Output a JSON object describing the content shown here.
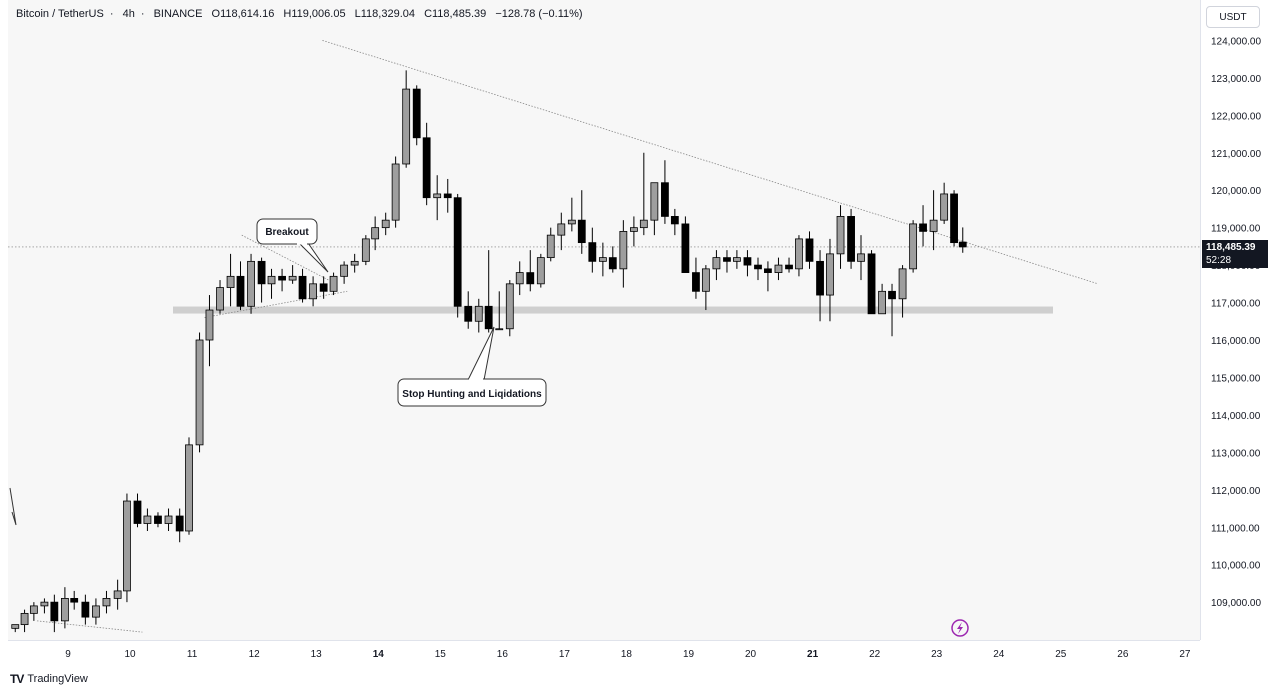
{
  "header": {
    "symbol": "Bitcoin / TetherUS",
    "interval": "4h",
    "exchange": "BINANCE",
    "open": "O118,614.16",
    "high": "H119,006.05",
    "low": "L118,329.04",
    "close": "C118,485.39",
    "change": "−128.78 (−0.11%)"
  },
  "price_scale": {
    "currency": "USDT",
    "last_price": "118,485.39",
    "countdown": "52:28"
  },
  "annotations": {
    "breakout": "Breakout",
    "stop_hunting": "Stop Hunting and Liqidations"
  },
  "footer": {
    "brand": "TradingView",
    "logo": "TV"
  },
  "colors": {
    "bull": "#9e9e9e",
    "bear": "#000000",
    "wick": "#000000",
    "support_band": "#cfcfcf",
    "trendline": "#888888",
    "lightning": "#9c27b0"
  },
  "chart_data": {
    "type": "candlestick",
    "title": "Bitcoin / TetherUS · 4h · BINANCE",
    "y_ticks": [
      "109,000.00",
      "110,000.00",
      "111,000.00",
      "112,000.00",
      "113,000.00",
      "114,000.00",
      "115,000.00",
      "116,000.00",
      "117,000.00",
      "118,000.00",
      "119,000.00",
      "120,000.00",
      "121,000.00",
      "122,000.00",
      "123,000.00",
      "124,000.00"
    ],
    "y_tick_values": [
      109000,
      110000,
      111000,
      112000,
      113000,
      114000,
      115000,
      116000,
      117000,
      118000,
      119000,
      120000,
      121000,
      122000,
      123000,
      124000
    ],
    "x_ticks": [
      "9",
      "10",
      "11",
      "12",
      "13",
      "14",
      "15",
      "16",
      "17",
      "18",
      "19",
      "20",
      "21",
      "22",
      "23",
      "24",
      "25",
      "26",
      "27"
    ],
    "x_tick_values": [
      9,
      10,
      11,
      12,
      13,
      14,
      15,
      16,
      17,
      18,
      19,
      20,
      21,
      22,
      23,
      24,
      25,
      26,
      27
    ],
    "ylim": [
      108500,
      124800
    ],
    "xlim": [
      8.05,
      27.3
    ],
    "last_price": 118485.39,
    "support_level": 116800,
    "candles": [
      {
        "t": 8.15,
        "o": 108300,
        "h": 108400,
        "l": 108200,
        "c": 108400
      },
      {
        "t": 8.3,
        "o": 108400,
        "h": 108800,
        "l": 108200,
        "c": 108700
      },
      {
        "t": 8.45,
        "o": 108700,
        "h": 109000,
        "l": 108500,
        "c": 108900
      },
      {
        "t": 8.62,
        "o": 108900,
        "h": 109100,
        "l": 108700,
        "c": 109000
      },
      {
        "t": 8.78,
        "o": 109000,
        "h": 109200,
        "l": 108200,
        "c": 108500
      },
      {
        "t": 8.95,
        "o": 108500,
        "h": 109400,
        "l": 108300,
        "c": 109100
      },
      {
        "t": 9.1,
        "o": 109100,
        "h": 109300,
        "l": 108800,
        "c": 109000
      },
      {
        "t": 9.28,
        "o": 109000,
        "h": 109200,
        "l": 108400,
        "c": 108600
      },
      {
        "t": 9.45,
        "o": 108600,
        "h": 109100,
        "l": 108400,
        "c": 108900
      },
      {
        "t": 9.62,
        "o": 108900,
        "h": 109300,
        "l": 108700,
        "c": 109100
      },
      {
        "t": 9.8,
        "o": 109100,
        "h": 109600,
        "l": 108800,
        "c": 109300
      },
      {
        "t": 9.95,
        "o": 109300,
        "h": 111900,
        "l": 109000,
        "c": 111700
      },
      {
        "t": 10.12,
        "o": 111700,
        "h": 111900,
        "l": 111000,
        "c": 111100
      },
      {
        "t": 10.28,
        "o": 111100,
        "h": 111500,
        "l": 110900,
        "c": 111300
      },
      {
        "t": 10.45,
        "o": 111300,
        "h": 111400,
        "l": 111000,
        "c": 111100
      },
      {
        "t": 10.62,
        "o": 111100,
        "h": 111500,
        "l": 110900,
        "c": 111300
      },
      {
        "t": 10.8,
        "o": 111300,
        "h": 111500,
        "l": 110600,
        "c": 110900
      },
      {
        "t": 10.95,
        "o": 110900,
        "h": 113400,
        "l": 110800,
        "c": 113200
      },
      {
        "t": 11.12,
        "o": 113200,
        "h": 116200,
        "l": 113000,
        "c": 116000
      },
      {
        "t": 11.28,
        "o": 116000,
        "h": 117200,
        "l": 115300,
        "c": 116800
      },
      {
        "t": 11.45,
        "o": 116800,
        "h": 117600,
        "l": 116700,
        "c": 117400
      },
      {
        "t": 11.62,
        "o": 117400,
        "h": 118300,
        "l": 116900,
        "c": 117700
      },
      {
        "t": 11.78,
        "o": 117700,
        "h": 118100,
        "l": 116800,
        "c": 116900
      },
      {
        "t": 11.95,
        "o": 116900,
        "h": 118300,
        "l": 116700,
        "c": 118100
      },
      {
        "t": 12.12,
        "o": 118100,
        "h": 118200,
        "l": 117000,
        "c": 117500
      },
      {
        "t": 12.28,
        "o": 117500,
        "h": 117900,
        "l": 117100,
        "c": 117700
      },
      {
        "t": 12.45,
        "o": 117700,
        "h": 117900,
        "l": 117300,
        "c": 117600
      },
      {
        "t": 12.62,
        "o": 117600,
        "h": 118000,
        "l": 117500,
        "c": 117700
      },
      {
        "t": 12.78,
        "o": 117700,
        "h": 117900,
        "l": 117000,
        "c": 117100
      },
      {
        "t": 12.95,
        "o": 117100,
        "h": 117700,
        "l": 116900,
        "c": 117500
      },
      {
        "t": 13.12,
        "o": 117500,
        "h": 117700,
        "l": 117100,
        "c": 117300
      },
      {
        "t": 13.28,
        "o": 117300,
        "h": 117800,
        "l": 117200,
        "c": 117700
      },
      {
        "t": 13.45,
        "o": 117700,
        "h": 118100,
        "l": 117500,
        "c": 118000
      },
      {
        "t": 13.62,
        "o": 118000,
        "h": 118300,
        "l": 117800,
        "c": 118100
      },
      {
        "t": 13.8,
        "o": 118100,
        "h": 118800,
        "l": 118000,
        "c": 118700
      },
      {
        "t": 13.95,
        "o": 118700,
        "h": 119300,
        "l": 118400,
        "c": 119000
      },
      {
        "t": 14.12,
        "o": 119000,
        "h": 119400,
        "l": 118800,
        "c": 119200
      },
      {
        "t": 14.28,
        "o": 119200,
        "h": 120900,
        "l": 119000,
        "c": 120700
      },
      {
        "t": 14.45,
        "o": 120700,
        "h": 123200,
        "l": 120600,
        "c": 122700
      },
      {
        "t": 14.62,
        "o": 122700,
        "h": 122800,
        "l": 121200,
        "c": 121400
      },
      {
        "t": 14.78,
        "o": 121400,
        "h": 121800,
        "l": 119600,
        "c": 119800
      },
      {
        "t": 14.95,
        "o": 119800,
        "h": 120400,
        "l": 119200,
        "c": 119900
      },
      {
        "t": 15.12,
        "o": 119900,
        "h": 120300,
        "l": 119400,
        "c": 119800
      },
      {
        "t": 15.28,
        "o": 119800,
        "h": 119900,
        "l": 116600,
        "c": 116900
      },
      {
        "t": 15.45,
        "o": 116900,
        "h": 117300,
        "l": 116300,
        "c": 116500
      },
      {
        "t": 15.62,
        "o": 116500,
        "h": 117100,
        "l": 116200,
        "c": 116900
      },
      {
        "t": 15.78,
        "o": 116900,
        "h": 118400,
        "l": 116200,
        "c": 116300
      },
      {
        "t": 15.95,
        "o": 116300,
        "h": 117300,
        "l": 116300,
        "c": 116300
      },
      {
        "t": 16.12,
        "o": 116300,
        "h": 117600,
        "l": 116100,
        "c": 117500
      },
      {
        "t": 16.28,
        "o": 117500,
        "h": 118100,
        "l": 117200,
        "c": 117800
      },
      {
        "t": 16.45,
        "o": 117800,
        "h": 118400,
        "l": 117300,
        "c": 117500
      },
      {
        "t": 16.62,
        "o": 117500,
        "h": 118300,
        "l": 117400,
        "c": 118200
      },
      {
        "t": 16.78,
        "o": 118200,
        "h": 119000,
        "l": 118100,
        "c": 118800
      },
      {
        "t": 16.95,
        "o": 118800,
        "h": 119400,
        "l": 118400,
        "c": 119100
      },
      {
        "t": 17.12,
        "o": 119100,
        "h": 119800,
        "l": 118900,
        "c": 119200
      },
      {
        "t": 17.28,
        "o": 119200,
        "h": 120000,
        "l": 118300,
        "c": 118600
      },
      {
        "t": 17.45,
        "o": 118600,
        "h": 119000,
        "l": 117800,
        "c": 118100
      },
      {
        "t": 17.62,
        "o": 118100,
        "h": 118600,
        "l": 117700,
        "c": 118200
      },
      {
        "t": 17.78,
        "o": 118200,
        "h": 118500,
        "l": 117800,
        "c": 117900
      },
      {
        "t": 17.95,
        "o": 117900,
        "h": 119200,
        "l": 117400,
        "c": 118900
      },
      {
        "t": 18.12,
        "o": 118900,
        "h": 119300,
        "l": 118500,
        "c": 119000
      },
      {
        "t": 18.28,
        "o": 119000,
        "h": 121000,
        "l": 118800,
        "c": 119200
      },
      {
        "t": 18.45,
        "o": 119200,
        "h": 120200,
        "l": 118800,
        "c": 120200
      },
      {
        "t": 18.62,
        "o": 120200,
        "h": 120800,
        "l": 119100,
        "c": 119300
      },
      {
        "t": 18.78,
        "o": 119300,
        "h": 119500,
        "l": 118800,
        "c": 119100
      },
      {
        "t": 18.95,
        "o": 119100,
        "h": 119300,
        "l": 117800,
        "c": 117800
      },
      {
        "t": 19.12,
        "o": 117800,
        "h": 118200,
        "l": 117100,
        "c": 117300
      },
      {
        "t": 19.28,
        "o": 117300,
        "h": 118000,
        "l": 116800,
        "c": 117900
      },
      {
        "t": 19.45,
        "o": 117900,
        "h": 118400,
        "l": 117600,
        "c": 118200
      },
      {
        "t": 19.62,
        "o": 118200,
        "h": 118400,
        "l": 117800,
        "c": 118100
      },
      {
        "t": 19.78,
        "o": 118100,
        "h": 118400,
        "l": 117900,
        "c": 118200
      },
      {
        "t": 19.95,
        "o": 118200,
        "h": 118400,
        "l": 117700,
        "c": 118000
      },
      {
        "t": 20.12,
        "o": 118000,
        "h": 118200,
        "l": 117600,
        "c": 117900
      },
      {
        "t": 20.28,
        "o": 117900,
        "h": 118100,
        "l": 117300,
        "c": 117800
      },
      {
        "t": 20.45,
        "o": 117800,
        "h": 118200,
        "l": 117600,
        "c": 118000
      },
      {
        "t": 20.62,
        "o": 118000,
        "h": 118200,
        "l": 117800,
        "c": 117900
      },
      {
        "t": 20.78,
        "o": 117900,
        "h": 118800,
        "l": 117700,
        "c": 118700
      },
      {
        "t": 20.95,
        "o": 118700,
        "h": 118900,
        "l": 117900,
        "c": 118100
      },
      {
        "t": 21.12,
        "o": 118100,
        "h": 118400,
        "l": 116500,
        "c": 117200
      },
      {
        "t": 21.28,
        "o": 117200,
        "h": 118700,
        "l": 116500,
        "c": 118300
      },
      {
        "t": 21.45,
        "o": 118300,
        "h": 119600,
        "l": 117900,
        "c": 119300
      },
      {
        "t": 21.62,
        "o": 119300,
        "h": 119500,
        "l": 117900,
        "c": 118100
      },
      {
        "t": 21.78,
        "o": 118100,
        "h": 118800,
        "l": 117600,
        "c": 118300
      },
      {
        "t": 21.95,
        "o": 118300,
        "h": 118400,
        "l": 116700,
        "c": 116700
      },
      {
        "t": 22.12,
        "o": 116700,
        "h": 117500,
        "l": 116700,
        "c": 117300
      },
      {
        "t": 22.28,
        "o": 117300,
        "h": 117500,
        "l": 116100,
        "c": 117100
      },
      {
        "t": 22.45,
        "o": 117100,
        "h": 118000,
        "l": 116600,
        "c": 117900
      },
      {
        "t": 22.62,
        "o": 117900,
        "h": 119200,
        "l": 117800,
        "c": 119100
      },
      {
        "t": 22.78,
        "o": 119100,
        "h": 119600,
        "l": 118500,
        "c": 118900
      },
      {
        "t": 22.95,
        "o": 118900,
        "h": 120000,
        "l": 118400,
        "c": 119200
      },
      {
        "t": 23.12,
        "o": 119200,
        "h": 120200,
        "l": 119100,
        "c": 119900
      },
      {
        "t": 23.28,
        "o": 119900,
        "h": 120000,
        "l": 118500,
        "c": 118600
      },
      {
        "t": 23.42,
        "o": 118614.16,
        "h": 119006.05,
        "l": 118329.04,
        "c": 118485.39
      }
    ],
    "trendlines": [
      {
        "name": "descending-resistance",
        "from": [
          13.1,
          124000
        ],
        "to": [
          25.6,
          117500
        ]
      },
      {
        "name": "flag-upper",
        "from": [
          11.8,
          118800
        ],
        "to": [
          13.2,
          117600
        ]
      },
      {
        "name": "flag-lower",
        "from": [
          11.2,
          116600
        ],
        "to": [
          13.5,
          117300
        ]
      },
      {
        "name": "early-downtrend",
        "from": [
          8.5,
          108500
        ],
        "to": [
          10.2,
          108200
        ]
      }
    ]
  }
}
